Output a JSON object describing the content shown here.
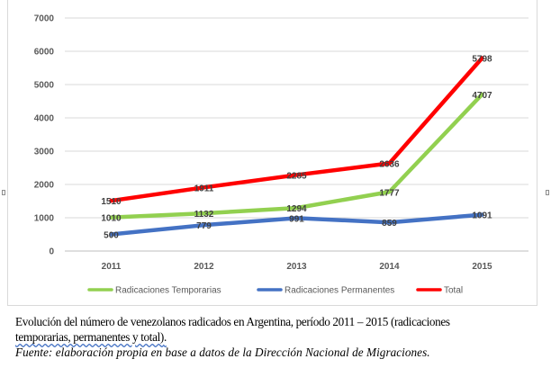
{
  "chart_data": {
    "type": "line",
    "categories": [
      "2011",
      "2012",
      "2013",
      "2014",
      "2015"
    ],
    "ylim": [
      0,
      7000
    ],
    "yticks": [
      "0",
      "1000",
      "2000",
      "3000",
      "4000",
      "5000",
      "6000",
      "7000"
    ],
    "grid": true,
    "legend_position": "bottom",
    "series": [
      {
        "name": "Radicaciones Temporarias",
        "color": "#92d050",
        "values": [
          1010,
          1132,
          1294,
          1777,
          4707
        ],
        "labels": [
          "1010",
          "1132",
          "1294",
          "1777",
          "4707"
        ]
      },
      {
        "name": "Radicaciones Permanentes",
        "color": "#4472c4",
        "values": [
          500,
          779,
          991,
          859,
          1091
        ],
        "labels": [
          "500",
          "779",
          "991",
          "859",
          "1091"
        ]
      },
      {
        "name": "Total",
        "color": "#ff0000",
        "values": [
          1510,
          1911,
          2285,
          2636,
          5798
        ],
        "labels": [
          "1510",
          "1911",
          "2285",
          "2636",
          "5798"
        ]
      }
    ]
  },
  "caption": {
    "line1": "Evolución del número de venezolanos radicados en Argentina, período 2011 – 2015 (radicaciones",
    "line2": "temporarias, permanentes y total)",
    "line2_tail": ".",
    "source": "Fuente: elaboración propia en base a datos de la Dirección Nacional de Migraciones."
  }
}
